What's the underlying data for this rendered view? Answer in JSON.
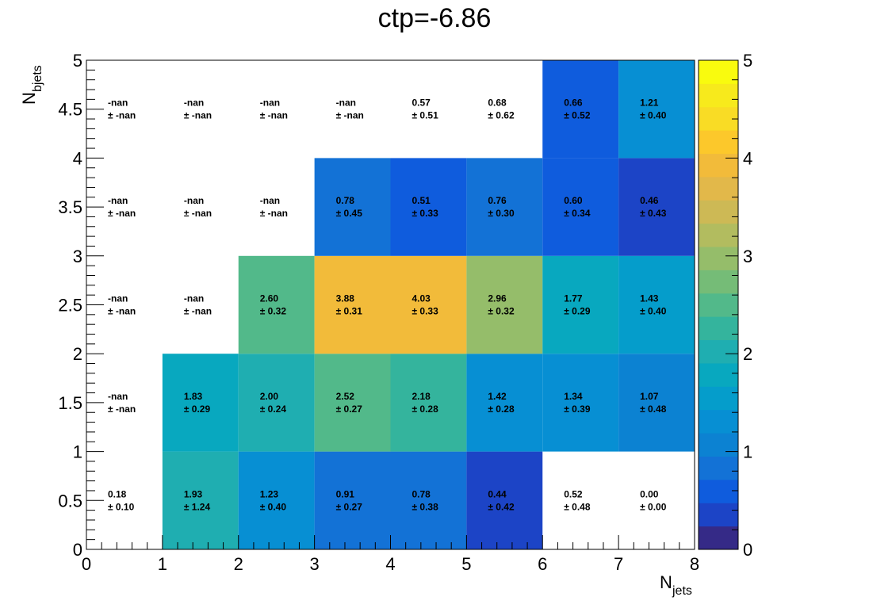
{
  "chart_data": {
    "type": "heatmap",
    "title": "ctp=-6.86",
    "xlabel": {
      "main": "N",
      "sub": "jets"
    },
    "ylabel": {
      "main": "N",
      "sub": "bjets"
    },
    "xlim": [
      0,
      8
    ],
    "ylim": [
      0,
      5
    ],
    "x_ticks": [
      "0",
      "1",
      "2",
      "3",
      "4",
      "5",
      "6",
      "7",
      "8"
    ],
    "y_ticks": [
      "0",
      "0.5",
      "1",
      "1.5",
      "2",
      "2.5",
      "3",
      "3.5",
      "4",
      "4.5",
      "5"
    ],
    "zlim": [
      0,
      5
    ],
    "z_ticks": [
      "0",
      "1",
      "2",
      "3",
      "4",
      "5"
    ],
    "colormap": [
      "#352a87",
      "#1c44c6",
      "#0f5cdd",
      "#1372d6",
      "#0c82d2",
      "#078fd3",
      "#059dcb",
      "#08a8bf",
      "#1faeb1",
      "#34b49d",
      "#52b98a",
      "#75bc77",
      "#95bd6a",
      "#b2bc5f",
      "#cdb955",
      "#e2b84a",
      "#f2bb3a",
      "#fcc82b",
      "#f9dc25",
      "#f7ea1c",
      "#f9fb0e"
    ],
    "grid": false,
    "x_bins": [
      0.5,
      1.5,
      2.5,
      3.5,
      4.5,
      5.5,
      6.5,
      7.5
    ],
    "y_bins": [
      0.5,
      1.5,
      2.5,
      3.5,
      4.5
    ],
    "cells": [
      [
        {
          "value": 0.18,
          "label": "0.18",
          "error": "± 0.10",
          "fill": false
        },
        {
          "value": 1.93,
          "label": "1.93",
          "error": "± 1.24",
          "fill": true
        },
        {
          "value": 1.23,
          "label": "1.23",
          "error": "± 0.40",
          "fill": true
        },
        {
          "value": 0.91,
          "label": "0.91",
          "error": "± 0.27",
          "fill": true
        },
        {
          "value": 0.78,
          "label": "0.78",
          "error": "± 0.38",
          "fill": true
        },
        {
          "value": 0.44,
          "label": "0.44",
          "error": "± 0.42",
          "fill": true
        },
        {
          "value": 0.52,
          "label": "0.52",
          "error": "± 0.48",
          "fill": false
        },
        {
          "value": 0.0,
          "label": "0.00",
          "error": "± 0.00",
          "fill": false
        }
      ],
      [
        {
          "value": null,
          "label": "-nan",
          "error": "± -nan",
          "fill": false
        },
        {
          "value": 1.83,
          "label": "1.83",
          "error": "± 0.29",
          "fill": true
        },
        {
          "value": 2.0,
          "label": "2.00",
          "error": "± 0.24",
          "fill": true
        },
        {
          "value": 2.52,
          "label": "2.52",
          "error": "± 0.27",
          "fill": true
        },
        {
          "value": 2.18,
          "label": "2.18",
          "error": "± 0.28",
          "fill": true
        },
        {
          "value": 1.42,
          "label": "1.42",
          "error": "± 0.28",
          "fill": true
        },
        {
          "value": 1.34,
          "label": "1.34",
          "error": "± 0.39",
          "fill": true
        },
        {
          "value": 1.07,
          "label": "1.07",
          "error": "± 0.48",
          "fill": true
        }
      ],
      [
        {
          "value": null,
          "label": "-nan",
          "error": "± -nan",
          "fill": false
        },
        {
          "value": null,
          "label": "-nan",
          "error": "± -nan",
          "fill": false
        },
        {
          "value": 2.6,
          "label": "2.60",
          "error": "± 0.32",
          "fill": true
        },
        {
          "value": 3.88,
          "label": "3.88",
          "error": "± 0.31",
          "fill": true
        },
        {
          "value": 4.03,
          "label": "4.03",
          "error": "± 0.33",
          "fill": true
        },
        {
          "value": 2.96,
          "label": "2.96",
          "error": "± 0.32",
          "fill": true
        },
        {
          "value": 1.77,
          "label": "1.77",
          "error": "± 0.29",
          "fill": true
        },
        {
          "value": 1.43,
          "label": "1.43",
          "error": "± 0.40",
          "fill": true
        }
      ],
      [
        {
          "value": null,
          "label": "-nan",
          "error": "± -nan",
          "fill": false
        },
        {
          "value": null,
          "label": "-nan",
          "error": "± -nan",
          "fill": false
        },
        {
          "value": null,
          "label": "-nan",
          "error": "± -nan",
          "fill": false
        },
        {
          "value": 0.78,
          "label": "0.78",
          "error": "± 0.45",
          "fill": true
        },
        {
          "value": 0.51,
          "label": "0.51",
          "error": "± 0.33",
          "fill": true
        },
        {
          "value": 0.76,
          "label": "0.76",
          "error": "± 0.30",
          "fill": true
        },
        {
          "value": 0.6,
          "label": "0.60",
          "error": "± 0.34",
          "fill": true
        },
        {
          "value": 0.46,
          "label": "0.46",
          "error": "± 0.43",
          "fill": true
        }
      ],
      [
        {
          "value": null,
          "label": "-nan",
          "error": "± -nan",
          "fill": false
        },
        {
          "value": null,
          "label": "-nan",
          "error": "± -nan",
          "fill": false
        },
        {
          "value": null,
          "label": "-nan",
          "error": "± -nan",
          "fill": false
        },
        {
          "value": null,
          "label": "-nan",
          "error": "± -nan",
          "fill": false
        },
        {
          "value": 0.57,
          "label": "0.57",
          "error": "± 0.51",
          "fill": false
        },
        {
          "value": 0.68,
          "label": "0.68",
          "error": "± 0.62",
          "fill": false
        },
        {
          "value": 0.66,
          "label": "0.66",
          "error": "± 0.52",
          "fill": true
        },
        {
          "value": 1.21,
          "label": "1.21",
          "error": "± 0.40",
          "fill": true
        }
      ]
    ]
  }
}
